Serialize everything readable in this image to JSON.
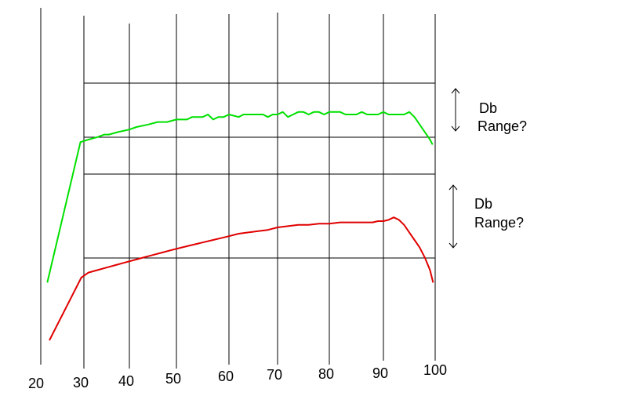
{
  "chart_data": {
    "type": "line",
    "title": "",
    "xlabel": "",
    "ylabel": "",
    "grid": true,
    "x_ticks": [
      "20",
      "30",
      "40",
      "50",
      "60",
      "70",
      "80",
      "90",
      "100"
    ],
    "colors": {
      "upper": "#00e000",
      "lower": "#e00000",
      "grid": "#000000",
      "background": "#ffffff"
    },
    "series": [
      {
        "color": "#00e000",
        "x": [
          21.5,
          29.2,
          31,
          33,
          34.5,
          35.5,
          37.5,
          40,
          41.5,
          44,
          46,
          48,
          50,
          52,
          53,
          55,
          56,
          57,
          58,
          59,
          60,
          62,
          63,
          64,
          65,
          66,
          67,
          68,
          69,
          70,
          71,
          72,
          73,
          74,
          75,
          76,
          77,
          78,
          79,
          80,
          81,
          82,
          83,
          84,
          85,
          86,
          87,
          88,
          89,
          90,
          91,
          92,
          93,
          94,
          95,
          96,
          97,
          98,
          99,
          99.5
        ],
        "y": [
          40,
          96,
          97,
          98,
          99,
          99,
          100,
          101,
          102,
          103,
          104,
          104,
          105,
          105,
          106,
          106,
          107,
          105,
          106,
          106,
          107,
          106,
          107,
          107,
          107,
          107,
          107,
          106,
          107,
          107,
          108,
          106,
          107,
          108,
          108,
          107,
          108,
          108,
          107,
          108,
          108,
          108,
          107,
          107,
          107,
          108,
          107,
          107,
          107,
          108,
          107,
          107,
          107,
          107,
          108,
          106,
          103,
          100,
          97,
          95
        ]
      },
      {
        "color": "#e00000",
        "x": [
          22,
          29.4,
          31,
          33,
          35,
          37,
          39,
          41,
          43,
          45,
          47,
          49,
          51,
          53,
          55,
          57,
          59,
          60,
          62,
          64,
          66,
          68,
          70,
          72,
          74,
          76,
          78,
          80,
          82,
          84,
          86,
          88,
          89,
          90,
          91,
          92,
          93,
          94,
          95,
          96,
          97,
          98,
          99,
          99.6
        ],
        "y": [
          17,
          42,
          44,
          45,
          46,
          47,
          48,
          49,
          50,
          51,
          52,
          53,
          54,
          55,
          56,
          57,
          58,
          58.5,
          59.5,
          60,
          60.5,
          61,
          62,
          62.5,
          63,
          63,
          63.5,
          63.5,
          64,
          64,
          64,
          64,
          64.5,
          64.5,
          65,
          66,
          65,
          63,
          60,
          57,
          54,
          50,
          45,
          40
        ]
      }
    ],
    "annotations": [
      {
        "text_line1": "Db",
        "text_line2": "Range?"
      },
      {
        "text_line1": "Db",
        "text_line2": "Range?"
      }
    ]
  }
}
